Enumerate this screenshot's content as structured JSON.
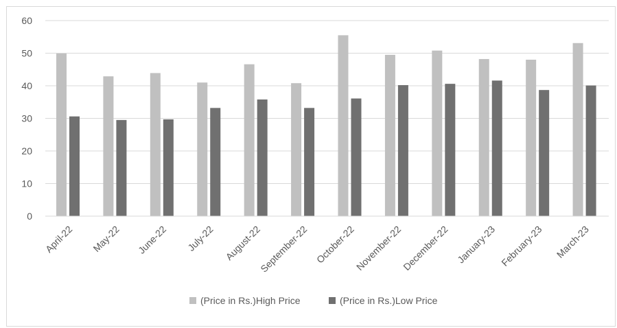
{
  "chart_data": {
    "type": "bar",
    "title": "",
    "xlabel": "",
    "ylabel": "",
    "categories": [
      "April-22",
      "May-22",
      "June-22",
      "July-22",
      "August-22",
      "September-22",
      "October-22",
      "November-22",
      "December-22",
      "January-23",
      "February-23",
      "March-23"
    ],
    "series": [
      {
        "name": "(Price in Rs.)High Price",
        "color": "#c0c0c0",
        "values": [
          49.9,
          42.9,
          43.9,
          41.0,
          46.6,
          40.8,
          55.5,
          49.5,
          50.8,
          48.2,
          48.0,
          53.1
        ]
      },
      {
        "name": "(Price in Rs.)Low Price",
        "color": "#707070",
        "values": [
          30.6,
          29.5,
          29.7,
          33.2,
          35.8,
          33.2,
          36.1,
          40.2,
          40.6,
          41.6,
          38.7,
          40.1
        ]
      }
    ],
    "ylim": [
      0,
      60
    ],
    "yticks": [
      0,
      10,
      20,
      30,
      40,
      50,
      60
    ],
    "grid": true,
    "legend": "bottom"
  }
}
